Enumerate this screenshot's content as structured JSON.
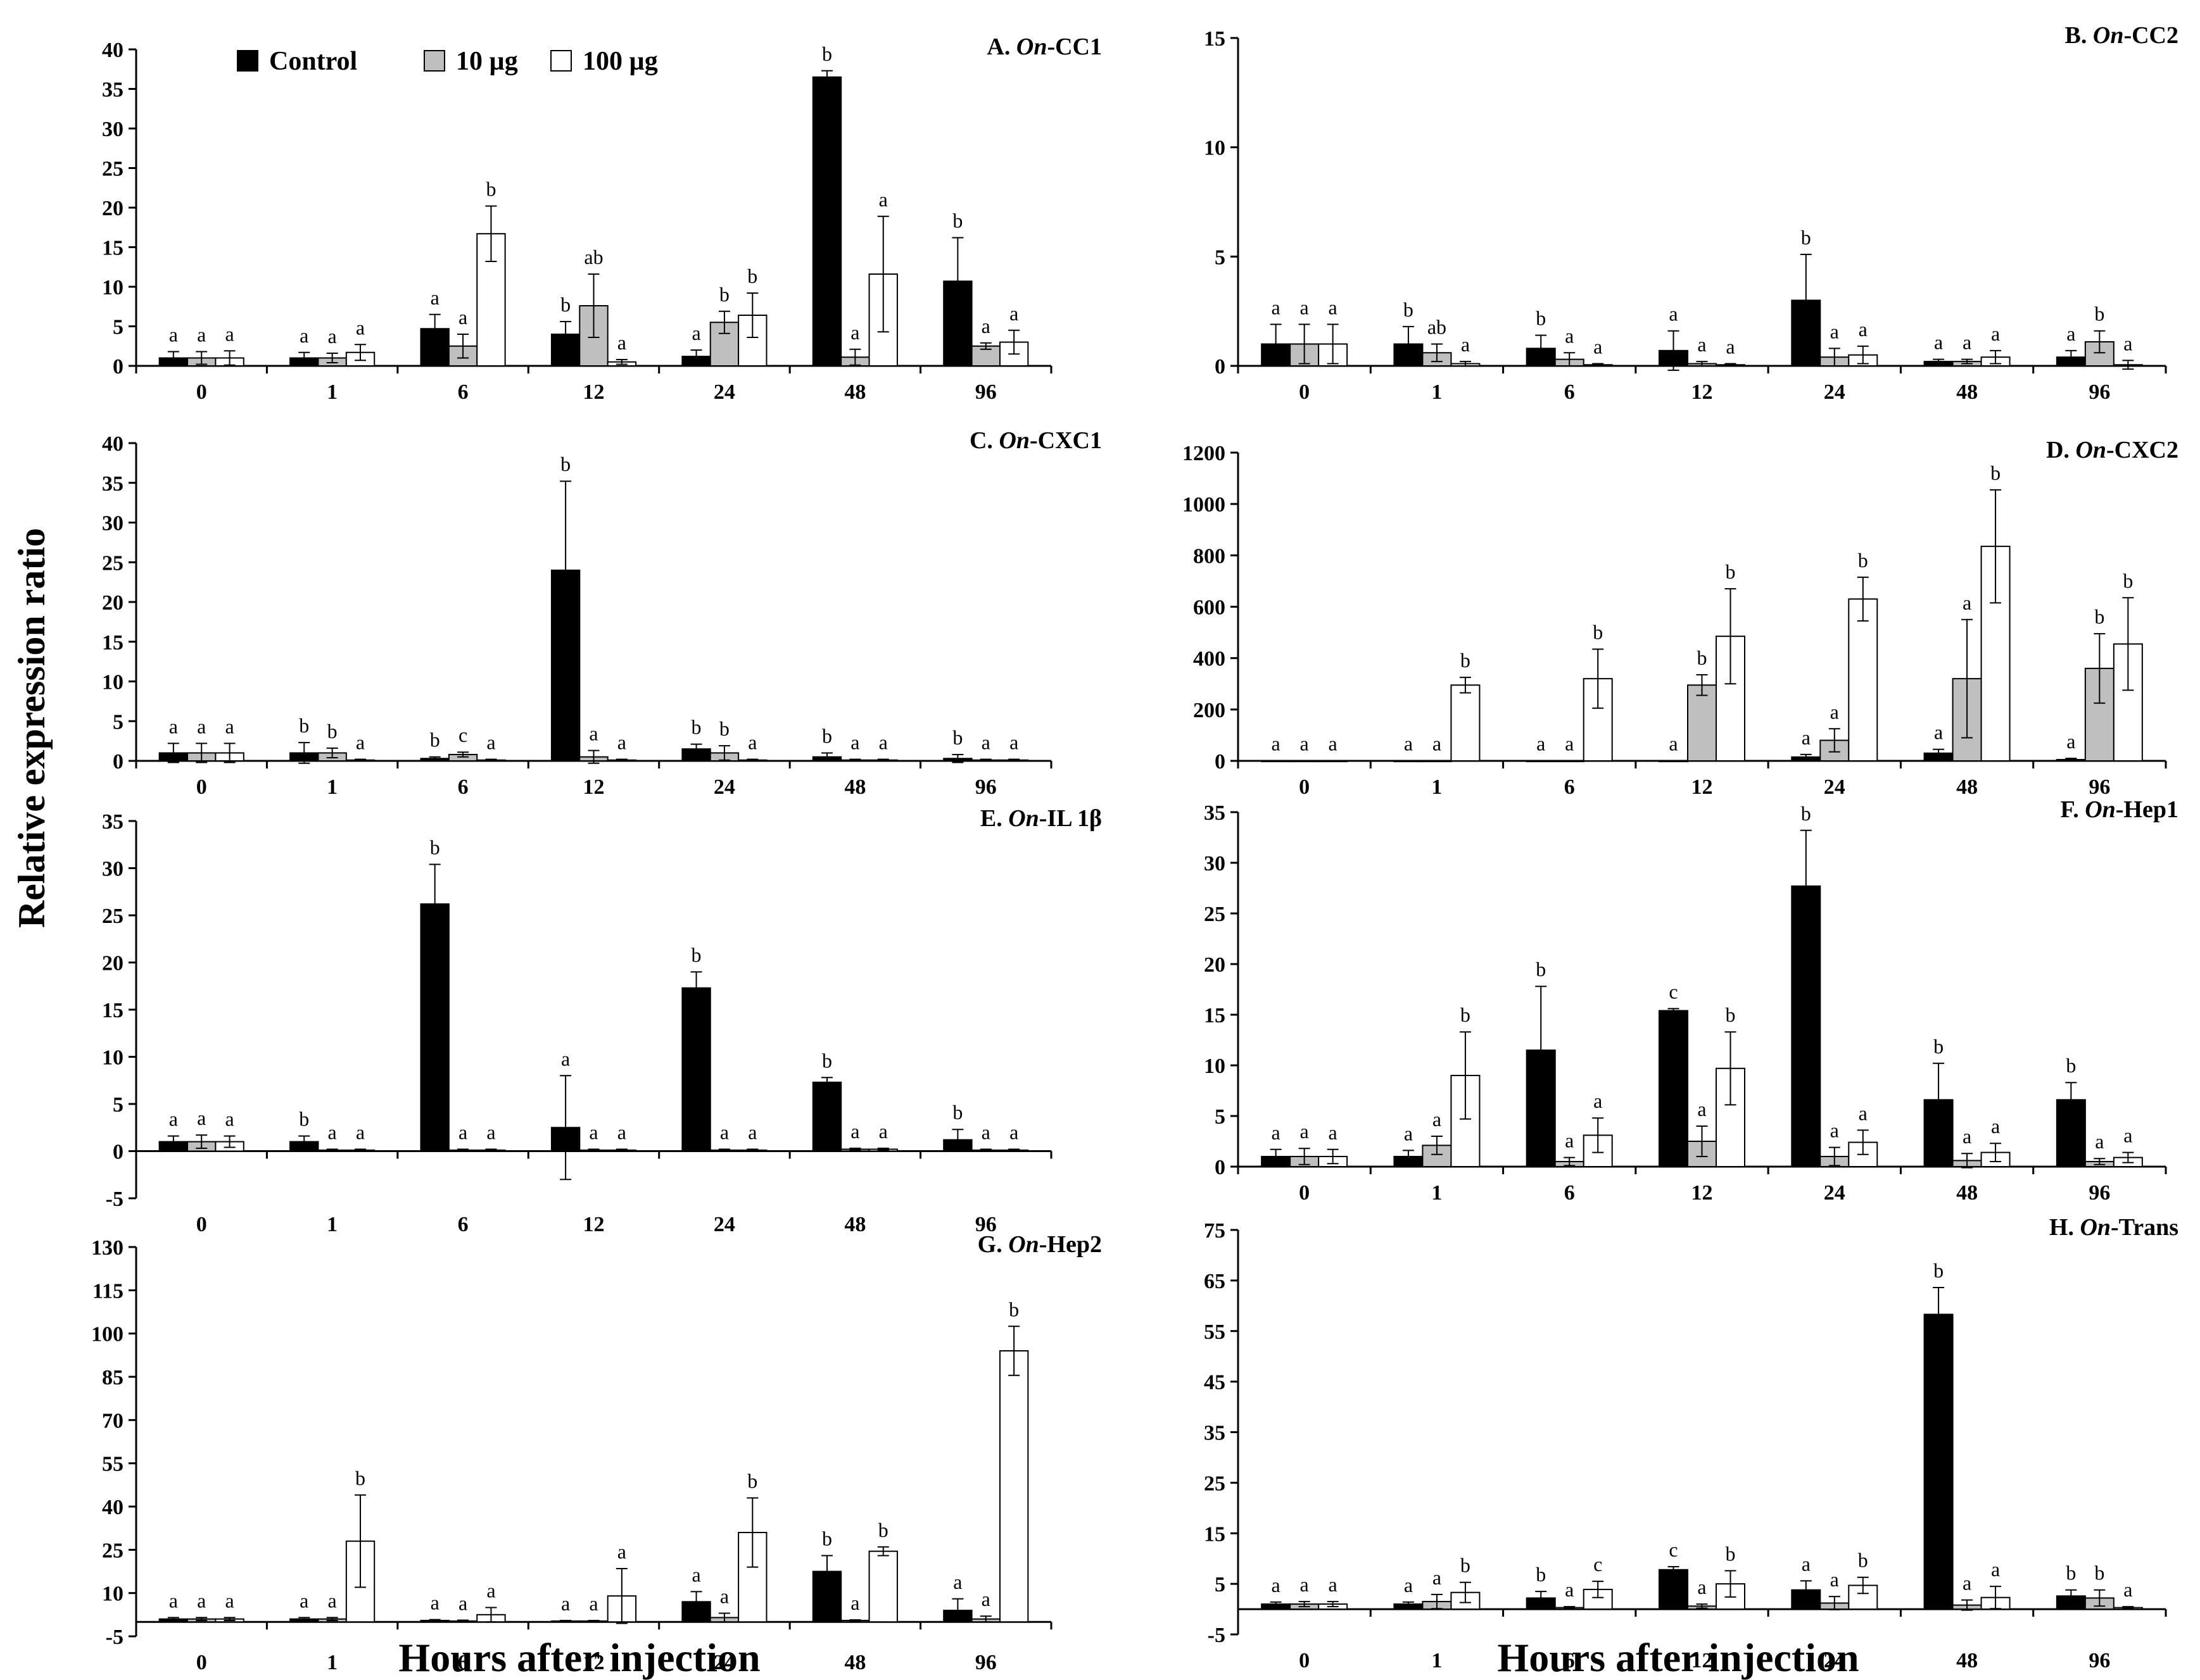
{
  "figure": {
    "y_axis_label": "Relative expression ratio",
    "x_axis_label": "Hours after injection"
  },
  "legend": [
    {
      "label": "Control",
      "color": "#000000"
    },
    {
      "label": "10 µg",
      "color": "#bfbfbf"
    },
    {
      "label": "100 µg",
      "color": "#ffffff"
    }
  ],
  "chart_data": [
    {
      "type": "bar",
      "panel_letter": "A.",
      "gene_prefix": "On",
      "gene_suffix": "-CC1",
      "categories": [
        "0",
        "1",
        "6",
        "12",
        "24",
        "48",
        "96"
      ],
      "ylim": [
        0,
        40
      ],
      "yticks": [
        0,
        5,
        10,
        15,
        20,
        25,
        30,
        35,
        40
      ],
      "series": [
        {
          "name": "Control",
          "values": [
            1,
            1,
            4.7,
            4,
            1.2,
            36.5,
            10.7
          ],
          "errors": [
            0.8,
            0.7,
            1.8,
            1.6,
            0.8,
            0.8,
            5.5
          ],
          "letters": [
            "a",
            "a",
            "a",
            "b",
            "a",
            "b",
            "b"
          ]
        },
        {
          "name": "10 µg",
          "values": [
            1,
            1,
            2.5,
            7.6,
            5.5,
            1.1,
            2.5
          ],
          "errors": [
            0.8,
            0.6,
            1.5,
            4,
            1.4,
            1,
            0.4
          ],
          "letters": [
            "a",
            "a",
            "a",
            "ab",
            "b",
            "a",
            "a"
          ]
        },
        {
          "name": "100 µg",
          "values": [
            1,
            1.7,
            16.7,
            0.5,
            6.4,
            11.6,
            3
          ],
          "errors": [
            0.9,
            1,
            3.5,
            0.3,
            2.8,
            7.3,
            1.5
          ],
          "letters": [
            "a",
            "a",
            "b",
            "a",
            "b",
            "a",
            "a"
          ]
        }
      ]
    },
    {
      "type": "bar",
      "panel_letter": "B.",
      "gene_prefix": "On",
      "gene_suffix": "-CC2",
      "categories": [
        "0",
        "1",
        "6",
        "12",
        "24",
        "48",
        "96"
      ],
      "ylim": [
        0,
        15
      ],
      "yticks": [
        0,
        5,
        10,
        15
      ],
      "series": [
        {
          "name": "Control",
          "values": [
            1,
            1,
            0.8,
            0.7,
            3,
            0.2,
            0.4
          ],
          "errors": [
            0.9,
            0.8,
            0.6,
            0.9,
            2.1,
            0.1,
            0.3
          ],
          "letters": [
            "a",
            "b",
            "b",
            "a",
            "b",
            "a",
            "a"
          ]
        },
        {
          "name": "10 µg",
          "values": [
            1,
            0.6,
            0.3,
            0.1,
            0.4,
            0.2,
            1.1
          ],
          "errors": [
            0.9,
            0.4,
            0.3,
            0.1,
            0.4,
            0.1,
            0.5
          ],
          "letters": [
            "a",
            "ab",
            "a",
            "a",
            "a",
            "a",
            "b"
          ]
        },
        {
          "name": "100 µg",
          "values": [
            1,
            0.1,
            0.05,
            0.05,
            0.5,
            0.4,
            0.05
          ],
          "errors": [
            0.9,
            0.1,
            0.05,
            0.05,
            0.4,
            0.3,
            0.2
          ],
          "letters": [
            "a",
            "a",
            "a",
            "a",
            "a",
            "a",
            "a"
          ]
        }
      ]
    },
    {
      "type": "bar",
      "panel_letter": "C.",
      "gene_prefix": "On",
      "gene_suffix": "-CXC1",
      "categories": [
        "0",
        "1",
        "6",
        "12",
        "24",
        "48",
        "96"
      ],
      "ylim": [
        0,
        40
      ],
      "yticks": [
        0,
        5,
        10,
        15,
        20,
        25,
        30,
        35,
        40
      ],
      "series": [
        {
          "name": "Control",
          "values": [
            1,
            1,
            0.3,
            24,
            1.5,
            0.5,
            0.3
          ],
          "errors": [
            1.2,
            1.3,
            0.2,
            11.2,
            0.6,
            0.5,
            0.5
          ],
          "letters": [
            "a",
            "b",
            "b",
            "b",
            "b",
            "b",
            "b"
          ]
        },
        {
          "name": "10 µg",
          "values": [
            1,
            1,
            0.8,
            0.5,
            1,
            0.1,
            0.1
          ],
          "errors": [
            1.2,
            0.6,
            0.3,
            0.8,
            0.9,
            0.1,
            0.1
          ],
          "letters": [
            "a",
            "b",
            "c",
            "a",
            "b",
            "a",
            "a"
          ]
        },
        {
          "name": "100 µg",
          "values": [
            1,
            0.1,
            0.1,
            0.1,
            0.1,
            0.1,
            0.1
          ],
          "errors": [
            1.2,
            0.1,
            0.1,
            0.1,
            0.1,
            0.1,
            0.1
          ],
          "letters": [
            "a",
            "a",
            "a",
            "a",
            "a",
            "a",
            "a"
          ]
        }
      ]
    },
    {
      "type": "bar",
      "panel_letter": "D.",
      "gene_prefix": "On",
      "gene_suffix": "-CXC2",
      "categories": [
        "0",
        "1",
        "6",
        "12",
        "24",
        "48",
        "96"
      ],
      "ylim": [
        0,
        1200
      ],
      "yticks": [
        0,
        200,
        400,
        600,
        800,
        1000,
        1200
      ],
      "series": [
        {
          "name": "Control",
          "values": [
            1,
            1,
            1,
            1,
            15,
            30,
            5
          ],
          "errors": [
            0,
            0,
            0,
            0,
            10,
            15,
            5
          ],
          "letters": [
            "a",
            "a",
            "a",
            "a",
            "a",
            "a",
            "a"
          ]
        },
        {
          "name": "10 µg",
          "values": [
            1,
            1,
            1,
            295,
            80,
            320,
            360
          ],
          "errors": [
            0,
            0,
            0,
            40,
            45,
            230,
            135
          ],
          "letters": [
            "a",
            "a",
            "a",
            "b",
            "a",
            "a",
            "b"
          ]
        },
        {
          "name": "100 µg",
          "values": [
            1,
            295,
            320,
            485,
            630,
            835,
            455
          ],
          "errors": [
            0,
            30,
            115,
            185,
            85,
            220,
            180
          ],
          "letters": [
            "a",
            "b",
            "b",
            "b",
            "b",
            "b",
            "b"
          ]
        }
      ]
    },
    {
      "type": "bar",
      "panel_letter": "E.",
      "gene_prefix": "On",
      "gene_suffix": "-IL 1β",
      "categories": [
        "0",
        "1",
        "6",
        "12",
        "24",
        "48",
        "96"
      ],
      "ylim": [
        -5,
        35
      ],
      "yticks": [
        -5,
        0,
        5,
        10,
        15,
        20,
        25,
        30,
        35
      ],
      "series": [
        {
          "name": "Control",
          "values": [
            1,
            1,
            26.2,
            2.5,
            17.3,
            7.3,
            1.2
          ],
          "errors": [
            0.6,
            0.6,
            4.2,
            5.5,
            1.7,
            0.5,
            1.1
          ],
          "letters": [
            "a",
            "b",
            "b",
            "a",
            "b",
            "b",
            "b"
          ]
        },
        {
          "name": "10 µg",
          "values": [
            1,
            0.1,
            0.1,
            0.1,
            0.1,
            0.2,
            0.1
          ],
          "errors": [
            0.7,
            0.1,
            0.1,
            0.1,
            0.1,
            0.1,
            0.1
          ],
          "letters": [
            "a",
            "a",
            "a",
            "a",
            "a",
            "a",
            "a"
          ]
        },
        {
          "name": "100 µg",
          "values": [
            1,
            0.1,
            0.1,
            0.1,
            0.1,
            0.2,
            0.1
          ],
          "errors": [
            0.6,
            0.1,
            0.1,
            0.1,
            0.1,
            0.1,
            0.1
          ],
          "letters": [
            "a",
            "a",
            "a",
            "a",
            "a",
            "a",
            "a"
          ]
        }
      ]
    },
    {
      "type": "bar",
      "panel_letter": "F.",
      "gene_prefix": "On",
      "gene_suffix": "-Hep1",
      "categories": [
        "0",
        "1",
        "6",
        "12",
        "24",
        "48",
        "96"
      ],
      "ylim": [
        0,
        35
      ],
      "yticks": [
        0,
        5,
        10,
        15,
        20,
        25,
        30,
        35
      ],
      "series": [
        {
          "name": "Control",
          "values": [
            1,
            1,
            11.5,
            15.4,
            27.7,
            6.6,
            6.6
          ],
          "errors": [
            0.7,
            0.6,
            6.3,
            0.2,
            5.5,
            3.6,
            1.7
          ],
          "letters": [
            "a",
            "a",
            "b",
            "c",
            "b",
            "b",
            "b"
          ]
        },
        {
          "name": "10 µg",
          "values": [
            1,
            2.1,
            0.5,
            2.5,
            1,
            0.6,
            0.5
          ],
          "errors": [
            0.8,
            0.9,
            0.4,
            1.5,
            0.9,
            0.7,
            0.3
          ],
          "letters": [
            "a",
            "a",
            "a",
            "a",
            "a",
            "a",
            "a"
          ]
        },
        {
          "name": "100 µg",
          "values": [
            1,
            9,
            3.1,
            9.7,
            2.4,
            1.4,
            0.9
          ],
          "errors": [
            0.7,
            4.3,
            1.7,
            3.6,
            1.2,
            0.9,
            0.5
          ],
          "letters": [
            "a",
            "b",
            "a",
            "b",
            "a",
            "a",
            "a"
          ]
        }
      ]
    },
    {
      "type": "bar",
      "panel_letter": "G.",
      "gene_prefix": "On",
      "gene_suffix": "-Hep2",
      "categories": [
        "0",
        "1",
        "6",
        "12",
        "24",
        "48",
        "96"
      ],
      "ylim": [
        -5,
        130
      ],
      "yticks": [
        -5,
        10,
        25,
        40,
        55,
        70,
        85,
        100,
        115,
        130
      ],
      "series": [
        {
          "name": "Control",
          "values": [
            1,
            1,
            0.5,
            0.3,
            7,
            17.5,
            4
          ],
          "errors": [
            0.5,
            0.5,
            0.3,
            0.2,
            3.5,
            5.5,
            4
          ],
          "letters": [
            "a",
            "a",
            "a",
            "a",
            "a",
            "b",
            "a"
          ]
        },
        {
          "name": "10 µg",
          "values": [
            1,
            1,
            0.3,
            0.3,
            1.5,
            0.5,
            1
          ],
          "errors": [
            0.5,
            0.5,
            0.3,
            0.2,
            1.5,
            0.2,
            1
          ],
          "letters": [
            "a",
            "a",
            "a",
            "a",
            "a",
            "a",
            "a"
          ]
        },
        {
          "name": "100 µg",
          "values": [
            1,
            28,
            2.5,
            9,
            31,
            24.5,
            94
          ],
          "errors": [
            0.5,
            16,
            2.5,
            9.5,
            12,
            1.5,
            8.5
          ],
          "letters": [
            "a",
            "b",
            "a",
            "a",
            "b",
            "b",
            "b"
          ]
        }
      ]
    },
    {
      "type": "bar",
      "panel_letter": "H.",
      "gene_prefix": "On",
      "gene_suffix": "-Trans",
      "categories": [
        "0",
        "1",
        "6",
        "12",
        "24",
        "48",
        "96"
      ],
      "ylim": [
        -5,
        75
      ],
      "yticks": [
        -5,
        5,
        15,
        25,
        35,
        45,
        55,
        65,
        75
      ],
      "series": [
        {
          "name": "Control",
          "values": [
            1,
            1,
            2.2,
            7.8,
            3.8,
            58.3,
            2.6
          ],
          "errors": [
            0.4,
            0.4,
            1.3,
            0.6,
            1.8,
            5.3,
            1.2
          ],
          "letters": [
            "a",
            "a",
            "b",
            "c",
            "a",
            "b",
            "b"
          ]
        },
        {
          "name": "10 µg",
          "values": [
            1,
            1.5,
            0.3,
            0.6,
            1.2,
            0.8,
            2.2
          ],
          "errors": [
            0.5,
            1.4,
            0.2,
            0.4,
            1.3,
            1,
            1.6
          ],
          "letters": [
            "a",
            "a",
            "a",
            "a",
            "a",
            "a",
            "b"
          ]
        },
        {
          "name": "100 µg",
          "values": [
            1,
            3.3,
            3.9,
            5,
            4.7,
            2.3,
            0.3
          ],
          "errors": [
            0.5,
            2,
            1.6,
            2.6,
            1.6,
            2.2,
            0.2
          ],
          "letters": [
            "a",
            "b",
            "c",
            "b",
            "b",
            "a",
            "a"
          ]
        }
      ]
    }
  ]
}
